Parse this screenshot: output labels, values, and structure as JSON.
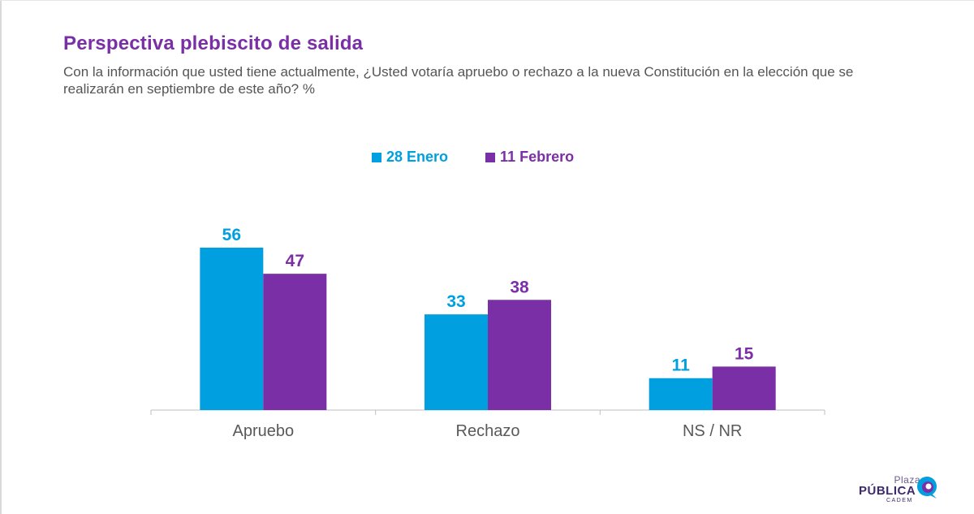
{
  "title": "Perspectiva plebiscito de salida",
  "subtitle": "Con la información que usted tiene actualmente, ¿Usted votaría apruebo o rechazo a la nueva Constitución en la elección que se realizarán en septiembre de este año? %",
  "logo": {
    "top": "Plaza",
    "main": "PÚBLICA",
    "bottom": "CADEM"
  },
  "colors": {
    "series1": "#009fe0",
    "series2": "#7b2fa6",
    "title": "#7b2fa6",
    "axis": "#bfbfbf",
    "category_label": "#595959"
  },
  "chart_data": {
    "type": "bar",
    "categories": [
      "Apruebo",
      "Rechazo",
      "NS / NR"
    ],
    "series": [
      {
        "name": "28 Enero",
        "values": [
          56,
          33,
          11
        ]
      },
      {
        "name": "11 Febrero",
        "values": [
          47,
          38,
          15
        ]
      }
    ],
    "ylim": [
      0,
      56
    ],
    "grid": false,
    "legend": "top-center",
    "data_labels": true
  }
}
